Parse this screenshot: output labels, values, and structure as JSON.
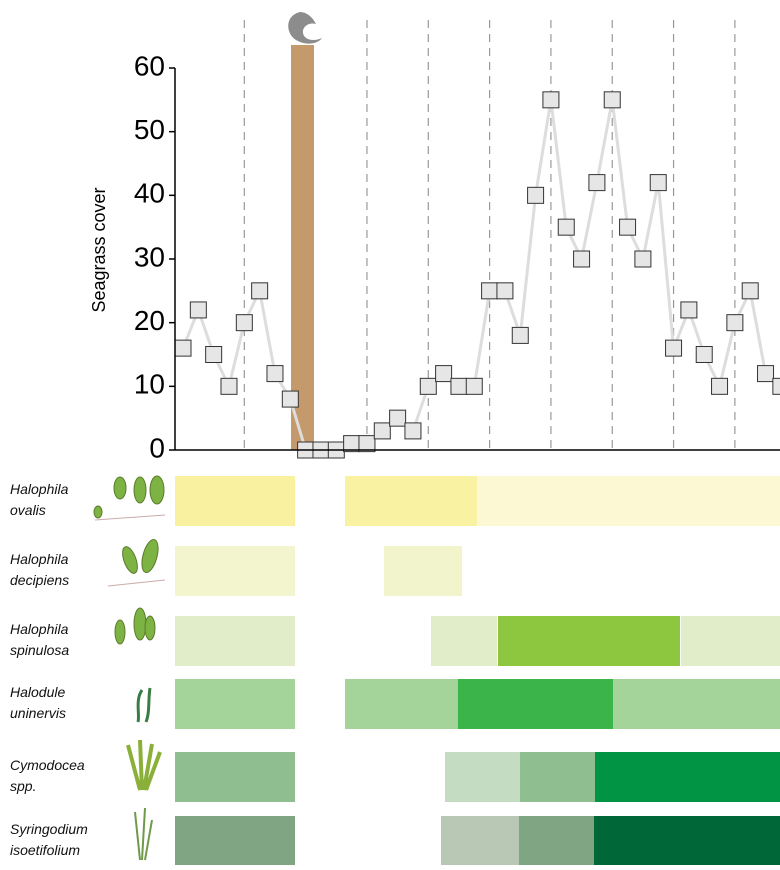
{
  "chart_data": {
    "type": "line",
    "ylabel": "Seagrass cover",
    "categories": [
      null,
      null,
      null,
      null,
      null,
      null,
      null,
      null,
      null,
      null,
      null,
      null,
      null,
      null,
      null,
      null,
      null,
      null,
      null,
      null,
      null,
      null,
      null,
      null,
      null,
      null,
      null,
      null,
      null,
      null,
      null,
      null,
      null,
      null,
      null,
      null,
      null,
      null,
      null,
      null
    ],
    "series": [
      {
        "name": "Seagrass cover",
        "color": "#dddddd",
        "values": [
          16,
          22,
          15,
          10,
          20,
          25,
          12,
          8,
          0,
          0,
          0,
          1,
          1,
          3,
          5,
          3,
          10,
          12,
          10,
          10,
          25,
          25,
          18,
          40,
          55,
          35,
          30,
          42,
          55,
          35,
          30,
          42,
          16,
          22,
          15,
          10,
          20,
          25,
          12,
          10
        ]
      }
    ],
    "ylim": [
      0,
      60
    ],
    "yticks": [
      0,
      10,
      20,
      30,
      40,
      50,
      60
    ],
    "species": [
      {
        "name": "Halophila\novalis"
      },
      {
        "name": "Halophila\ndecipiens"
      },
      {
        "name": "Halophila\nspinulosa"
      },
      {
        "name": "Halodule\nuninervis"
      },
      {
        "name": "Cymodocea\nspp."
      },
      {
        "name": "Syringodium\nisoetifolium"
      }
    ]
  }
}
